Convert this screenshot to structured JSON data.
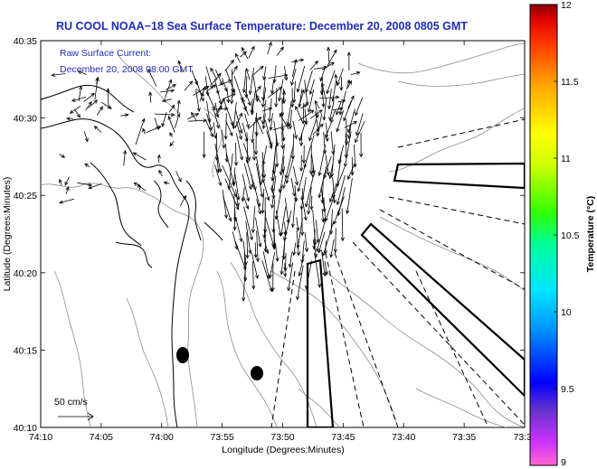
{
  "title": "RU COOL  NOAA−18  Sea Surface Temperature:  December 20, 2008 0805 GMT",
  "current_label": "Raw Surface Current:",
  "current_time": "December 20, 2008 08:00 GMT",
  "scale_label": "50 cm/s",
  "colorbar": {
    "label": "Temperature (°C)",
    "min": 9,
    "max": 12,
    "tick_values": [
      9,
      9.5,
      10,
      10.5,
      11,
      11.5,
      12
    ],
    "tick_labels": [
      "9",
      "9.5",
      "10",
      "10.5",
      "11",
      "11.5",
      "12"
    ]
  },
  "chart_data": {
    "type": "map",
    "xlabel": "Longitude (Degrees:Minutes)",
    "ylabel": "Latitude (Degrees:Minutes)",
    "x_tick_labels": [
      "74:10",
      "74:05",
      "74:00",
      "73:55",
      "73:50",
      "73:45",
      "73:40",
      "73:35",
      "73:3"
    ],
    "y_tick_labels": [
      "40:35",
      "40:30",
      "40:25",
      "40:20",
      "40:15",
      "40:10"
    ],
    "xlim_minutes_west": [
      70,
      30
    ],
    "ylim_minutes_north": [
      10,
      35
    ]
  }
}
